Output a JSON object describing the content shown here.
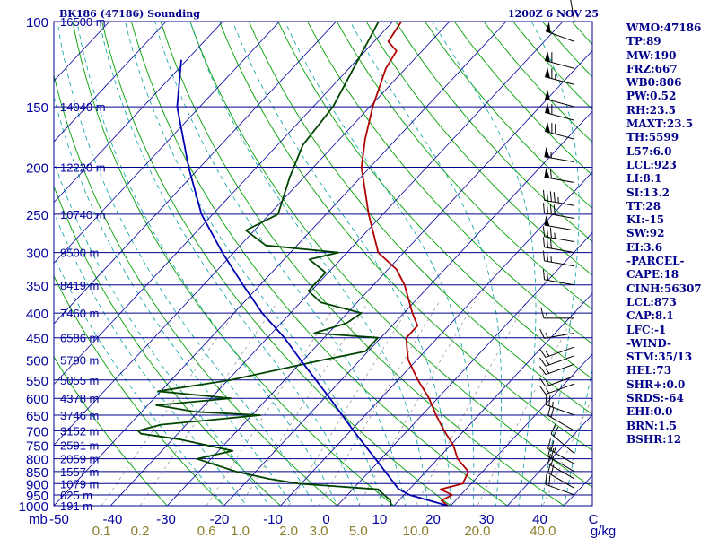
{
  "title_left": "BK186 (47186) Sounding",
  "title_right": "1200Z  6 NOV 25",
  "axis": {
    "pressure_unit": "mb",
    "mixing_ratio_unit": "g/kg",
    "temperature_ticks": [
      "-50",
      "-40",
      "-30",
      "-20",
      "-10",
      "0",
      "10",
      "20",
      "30",
      "40",
      "C"
    ],
    "mixing_ratio_ticks": [
      "0.1",
      "0.2",
      "0.6",
      "1.0",
      "2.0",
      "3.0",
      "5.0",
      "10.0",
      "20.0",
      "40.0"
    ]
  },
  "pressure_levels": [
    {
      "p": "100",
      "height": "16500 m"
    },
    {
      "p": "150",
      "height": "14040 m"
    },
    {
      "p": "200",
      "height": "12220 m"
    },
    {
      "p": "250",
      "height": "10740 m"
    },
    {
      "p": "300",
      "height": "9500 m"
    },
    {
      "p": "350",
      "height": "8419 m"
    },
    {
      "p": "400",
      "height": "7460 m"
    },
    {
      "p": "450",
      "height": "6586 m"
    },
    {
      "p": "500",
      "height": "5790 m"
    },
    {
      "p": "550",
      "height": "5055 m"
    },
    {
      "p": "600",
      "height": "4378 m"
    },
    {
      "p": "650",
      "height": "3746 m"
    },
    {
      "p": "700",
      "height": "3152 m"
    },
    {
      "p": "750",
      "height": "2591 m"
    },
    {
      "p": "800",
      "height": "2059 m"
    },
    {
      "p": "850",
      "height": "1557 m"
    },
    {
      "p": "900",
      "height": "1079 m"
    },
    {
      "p": "950",
      "height": "625 m"
    },
    {
      "p": "1000",
      "height": "191 m"
    }
  ],
  "indices": [
    "WMO:47186",
    "TP:89",
    "MW:190",
    "FRZ:667",
    "WB0:806",
    "PW:0.52",
    "RH:23.5",
    "MAXT:23.5",
    "TH:5599",
    "L57:6.0",
    "LCL:923",
    "LI:8.1",
    "SI:13.2",
    "TT:28",
    "KI:-15",
    "SW:92",
    "EI:3.6",
    "-PARCEL-",
    "CAPE:18",
    "CINH:56307",
    "LCL:873",
    "CAP:8.1",
    "LFC:-1",
    "-WIND-",
    "STM:35/13",
    "HEL:73",
    "SHR+:0.0",
    "SRDS:-64",
    "EHI:0.0",
    "BRN:1.5",
    "BSHR:12"
  ],
  "colors": {
    "temperature": "#b00000",
    "dewpoint": "#004400",
    "parcel": "#0000b0",
    "isobar": "#00008b",
    "isotherm": "#0000a0",
    "dry_adiabat": "#00a000",
    "moist_adiabat": "#00a0a0",
    "mixing_ratio": "#999999",
    "wind_barb": "#000000"
  },
  "chart_data": {
    "type": "line",
    "diagram": "skew-T log-P",
    "xlim_C": [
      -50,
      45
    ],
    "ylim_mb": [
      1000,
      100
    ],
    "series": [
      {
        "key": "temperature",
        "values": [
          [
            1000,
            19.5
          ],
          [
            975,
            17.5
          ],
          [
            950,
            18.5
          ],
          [
            925,
            15.5
          ],
          [
            900,
            18.5
          ],
          [
            850,
            17.5
          ],
          [
            800,
            13.5
          ],
          [
            750,
            10.5
          ],
          [
            700,
            6.5
          ],
          [
            650,
            2.5
          ],
          [
            600,
            -1.5
          ],
          [
            550,
            -6.5
          ],
          [
            500,
            -11.5
          ],
          [
            475,
            -13.5
          ],
          [
            450,
            -15.5
          ],
          [
            425,
            -15.5
          ],
          [
            400,
            -18.5
          ],
          [
            350,
            -24.5
          ],
          [
            325,
            -28.5
          ],
          [
            300,
            -34.5
          ],
          [
            250,
            -42.5
          ],
          [
            200,
            -51.5
          ],
          [
            175,
            -55.5
          ],
          [
            150,
            -59.5
          ],
          [
            125,
            -63.5
          ],
          [
            115,
            -64.5
          ],
          [
            110,
            -67.5
          ],
          [
            100,
            -68.5
          ]
        ]
      },
      {
        "key": "dewpoint",
        "values": [
          [
            1000,
            9.5
          ],
          [
            975,
            8.5
          ],
          [
            950,
            6.5
          ],
          [
            925,
            4.5
          ],
          [
            900,
            -10.5
          ],
          [
            880,
            -16.5
          ],
          [
            850,
            -23.5
          ],
          [
            800,
            -32.5
          ],
          [
            770,
            -27.5
          ],
          [
            730,
            -38.5
          ],
          [
            710,
            -46.5
          ],
          [
            700,
            -47.5
          ],
          [
            680,
            -44.5
          ],
          [
            650,
            -28.5
          ],
          [
            640,
            -40.5
          ],
          [
            620,
            -48.5
          ],
          [
            600,
            -36.5
          ],
          [
            580,
            -50.5
          ],
          [
            550,
            -39.5
          ],
          [
            500,
            -26.5
          ],
          [
            480,
            -20.5
          ],
          [
            450,
            -20.5
          ],
          [
            440,
            -32.5
          ],
          [
            420,
            -28.5
          ],
          [
            400,
            -27.5
          ],
          [
            380,
            -36.5
          ],
          [
            360,
            -40.5
          ],
          [
            330,
            -40.5
          ],
          [
            310,
            -45.5
          ],
          [
            300,
            -41.5
          ],
          [
            290,
            -55.5
          ],
          [
            270,
            -61.5
          ],
          [
            250,
            -58.5
          ],
          [
            210,
            -62.5
          ],
          [
            180,
            -65.5
          ],
          [
            150,
            -66.5
          ],
          [
            100,
            -72.5
          ]
        ]
      },
      {
        "key": "parcel",
        "values": [
          [
            1000,
            19.5
          ],
          [
            950,
            11.0
          ],
          [
            923,
            8.0
          ],
          [
            873,
            4.5
          ],
          [
            800,
            -1.0
          ],
          [
            700,
            -9.5
          ],
          [
            600,
            -19.0
          ],
          [
            500,
            -30.5
          ],
          [
            450,
            -37.0
          ],
          [
            400,
            -45.0
          ],
          [
            350,
            -53.0
          ],
          [
            300,
            -62.0
          ],
          [
            250,
            -72.0
          ],
          [
            200,
            -82.0
          ],
          [
            150,
            -94.0
          ],
          [
            120,
            -101.0
          ]
        ]
      }
    ],
    "wind_barbs": [
      {
        "p": 100,
        "dir": 350,
        "kt": 5
      },
      {
        "p": 110,
        "dir": 290,
        "kt": 50
      },
      {
        "p": 125,
        "dir": 285,
        "kt": 60
      },
      {
        "p": 135,
        "dir": 285,
        "kt": 65
      },
      {
        "p": 150,
        "dir": 285,
        "kt": 50
      },
      {
        "p": 160,
        "dir": 285,
        "kt": 60
      },
      {
        "p": 175,
        "dir": 285,
        "kt": 70
      },
      {
        "p": 195,
        "dir": 280,
        "kt": 55
      },
      {
        "p": 215,
        "dir": 280,
        "kt": 60
      },
      {
        "p": 240,
        "dir": 280,
        "kt": 45
      },
      {
        "p": 255,
        "dir": 280,
        "kt": 40
      },
      {
        "p": 270,
        "dir": 280,
        "kt": 50
      },
      {
        "p": 285,
        "dir": 280,
        "kt": 35
      },
      {
        "p": 300,
        "dir": 280,
        "kt": 30
      },
      {
        "p": 320,
        "dir": 280,
        "kt": 25
      },
      {
        "p": 350,
        "dir": 280,
        "kt": 20
      },
      {
        "p": 410,
        "dir": 270,
        "kt": 15
      },
      {
        "p": 440,
        "dir": 260,
        "kt": 15
      },
      {
        "p": 470,
        "dir": 250,
        "kt": 15
      },
      {
        "p": 490,
        "dir": 250,
        "kt": 15
      },
      {
        "p": 510,
        "dir": 250,
        "kt": 15
      },
      {
        "p": 540,
        "dir": 250,
        "kt": 15
      },
      {
        "p": 560,
        "dir": 250,
        "kt": 15
      },
      {
        "p": 650,
        "dir": 290,
        "kt": 25
      },
      {
        "p": 700,
        "dir": 300,
        "kt": 20
      },
      {
        "p": 780,
        "dir": 310,
        "kt": 20
      },
      {
        "p": 820,
        "dir": 300,
        "kt": 25
      },
      {
        "p": 850,
        "dir": 300,
        "kt": 20
      },
      {
        "p": 880,
        "dir": 300,
        "kt": 20
      },
      {
        "p": 920,
        "dir": 300,
        "kt": 20
      },
      {
        "p": 950,
        "dir": 290,
        "kt": 20
      }
    ]
  }
}
